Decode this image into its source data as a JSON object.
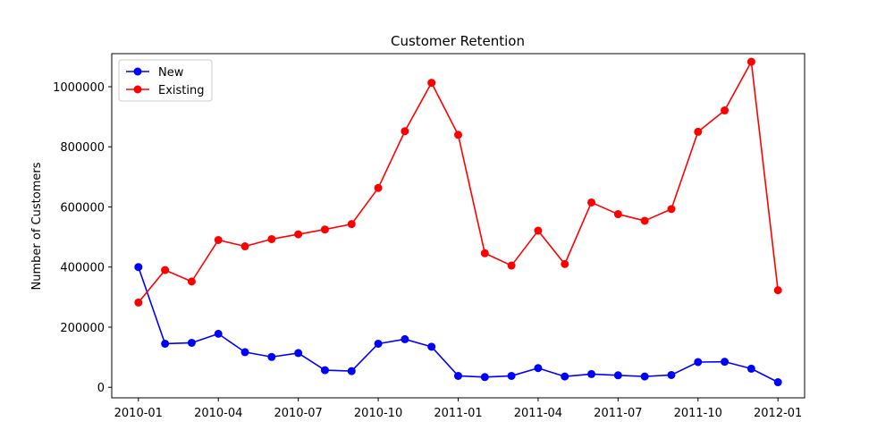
{
  "chart_data": {
    "type": "line",
    "title": "Customer Retention",
    "xlabel": "",
    "ylabel": "Number of Customers",
    "x": [
      "2010-01",
      "2010-02",
      "2010-03",
      "2010-04",
      "2010-05",
      "2010-06",
      "2010-07",
      "2010-08",
      "2010-09",
      "2010-10",
      "2010-11",
      "2010-12",
      "2011-01",
      "2011-02",
      "2011-03",
      "2011-04",
      "2011-05",
      "2011-06",
      "2011-07",
      "2011-08",
      "2011-09",
      "2011-10",
      "2011-11",
      "2011-12",
      "2012-01"
    ],
    "x_ticks": [
      "2010-01",
      "2010-04",
      "2010-07",
      "2010-10",
      "2011-01",
      "2011-04",
      "2011-07",
      "2011-10",
      "2012-01"
    ],
    "y_ticks": [
      0,
      200000,
      400000,
      600000,
      800000,
      1000000
    ],
    "y_tick_labels": [
      "0",
      "200000",
      "400000",
      "600000",
      "800000",
      "1000000"
    ],
    "ylim": [
      -35000,
      1110000
    ],
    "xlim": [
      "2009-12-01",
      "2012-02-01"
    ],
    "grid": false,
    "legend_position": "top-left",
    "series": [
      {
        "name": "New",
        "color": "#0000ff",
        "values": [
          400000,
          145000,
          148000,
          178000,
          117000,
          101000,
          114000,
          57000,
          54000,
          145000,
          160000,
          135000,
          38000,
          34000,
          38000,
          64000,
          36000,
          44000,
          40000,
          36000,
          41000,
          84000,
          85000,
          62000,
          17000
        ]
      },
      {
        "name": "Existing",
        "color": "#ff0000",
        "values": [
          282000,
          390000,
          352000,
          490000,
          469000,
          493000,
          509000,
          525000,
          543000,
          663000,
          852000,
          1013000,
          840000,
          446000,
          405000,
          521000,
          410000,
          615000,
          576000,
          554000,
          593000,
          850000,
          921000,
          1083000,
          323000
        ]
      }
    ]
  }
}
